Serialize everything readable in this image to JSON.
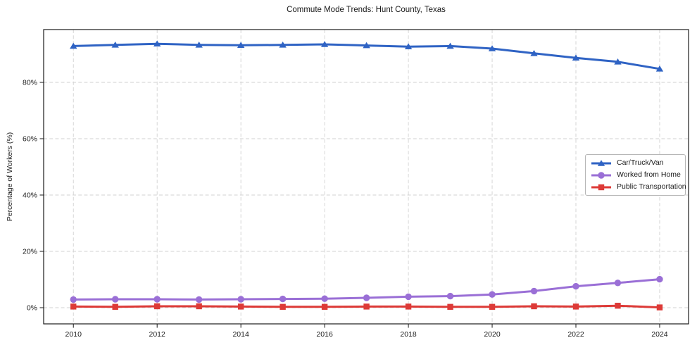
{
  "chart_data": {
    "type": "line",
    "title": "Commute Mode Trends: Hunt County, Texas",
    "xlabel": "",
    "ylabel": "Percentage of Workers (%)",
    "x": [
      2010,
      2011,
      2012,
      2013,
      2014,
      2015,
      2016,
      2017,
      2018,
      2019,
      2020,
      2021,
      2022,
      2023,
      2024
    ],
    "x_ticks": [
      2010,
      2012,
      2014,
      2016,
      2018,
      2020,
      2022,
      2024
    ],
    "x_tick_labels": [
      "2010",
      "2012",
      "2014",
      "2016",
      "2018",
      "2020",
      "2022",
      "2024"
    ],
    "y_ticks": [
      0,
      20,
      40,
      60,
      80
    ],
    "y_tick_labels": [
      "0%",
      "20%",
      "40%",
      "60%",
      "80%"
    ],
    "xlim": [
      2009.29,
      2024.69
    ],
    "ylim": [
      -5.75,
      98.75
    ],
    "grid": true,
    "grid_style": "dashed",
    "legend_position": "center-right",
    "series": [
      {
        "name": "Car/Truck/Van",
        "color": "#2f63c4",
        "marker": "triangle",
        "values": [
          92.9,
          93.3,
          93.7,
          93.3,
          93.2,
          93.3,
          93.5,
          93.1,
          92.7,
          92.9,
          92.0,
          90.3,
          88.7,
          87.3,
          84.8
        ]
      },
      {
        "name": "Worked from Home",
        "color": "#9a6fd6",
        "marker": "circle",
        "values": [
          2.9,
          3.0,
          3.0,
          2.9,
          3.0,
          3.1,
          3.2,
          3.5,
          3.9,
          4.1,
          4.7,
          5.9,
          7.6,
          8.8,
          10.1
        ]
      },
      {
        "name": "Public Transportation",
        "color": "#dd3a37",
        "marker": "square",
        "values": [
          0.4,
          0.3,
          0.5,
          0.5,
          0.4,
          0.3,
          0.3,
          0.4,
          0.4,
          0.3,
          0.3,
          0.5,
          0.4,
          0.7,
          0.1
        ]
      }
    ]
  },
  "colors": {
    "spine": "#1a1a1a",
    "grid": "#d2d2d2",
    "text": "#1a1a1a",
    "plot_background": "#ffffff",
    "legend_border": "#b6b6b6"
  }
}
